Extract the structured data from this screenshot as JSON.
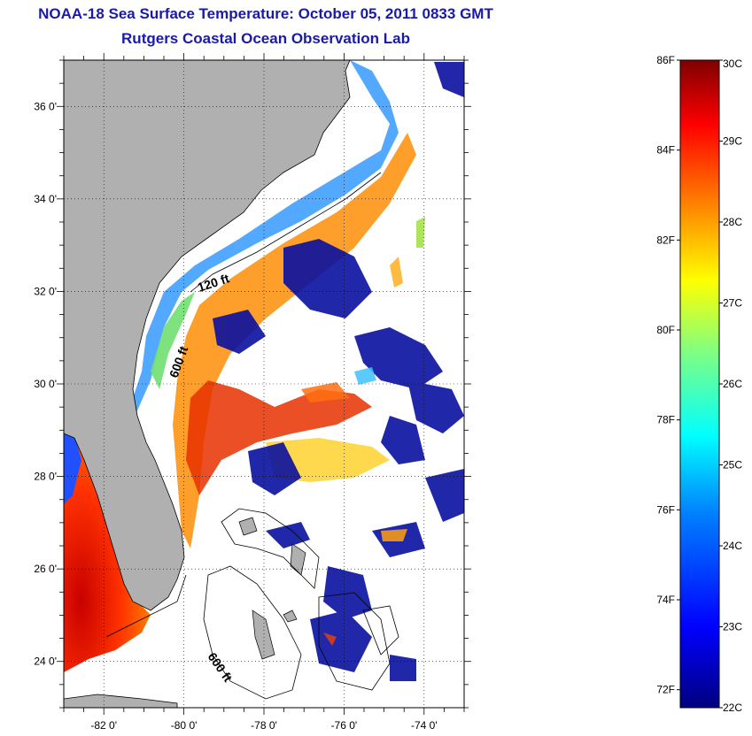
{
  "title": "NOAA-18 Sea Surface Temperature:  October 05, 2011 0833 GMT",
  "subtitle": "Rutgers Coastal Ocean Observation Lab",
  "map": {
    "lon_range": [
      -83,
      -73
    ],
    "lat_range": [
      23,
      37
    ],
    "lon_ticks": [
      {
        "value": -82,
        "label": "-82 0'"
      },
      {
        "value": -80,
        "label": "-80 0'"
      },
      {
        "value": -78,
        "label": "-78 0'"
      },
      {
        "value": -76,
        "label": "-76 0'"
      },
      {
        "value": -74,
        "label": "-74 0'"
      }
    ],
    "lat_ticks": [
      {
        "value": 24,
        "label": "24 0'"
      },
      {
        "value": 26,
        "label": "26 0'"
      },
      {
        "value": 28,
        "label": "28 0'"
      },
      {
        "value": 30,
        "label": "30 0'"
      },
      {
        "value": 32,
        "label": "32 0'"
      },
      {
        "value": 34,
        "label": "34 0'"
      },
      {
        "value": 36,
        "label": "36 0'"
      }
    ],
    "contour_labels": [
      "120 ft",
      "600 ft",
      "600 ft"
    ],
    "colors": {
      "land": "#b0b0b0",
      "ocean_no_data": "#ffffff",
      "title": "#1a1aa8"
    }
  },
  "colorbar": {
    "min_c": 22,
    "max_c": 30,
    "celsius_labels": [
      {
        "value": 30,
        "label": "30C"
      },
      {
        "value": 29,
        "label": "29C"
      },
      {
        "value": 28,
        "label": "28C"
      },
      {
        "value": 27,
        "label": "27C"
      },
      {
        "value": 26,
        "label": "26C"
      },
      {
        "value": 25,
        "label": "25C"
      },
      {
        "value": 24,
        "label": "24C"
      },
      {
        "value": 23,
        "label": "23C"
      },
      {
        "value": 22,
        "label": "22C"
      }
    ],
    "fahrenheit_labels": [
      {
        "value": 86,
        "label": "86F"
      },
      {
        "value": 84,
        "label": "84F"
      },
      {
        "value": 82,
        "label": "82F"
      },
      {
        "value": 80,
        "label": "80F"
      },
      {
        "value": 78,
        "label": "78F"
      },
      {
        "value": 76,
        "label": "76F"
      },
      {
        "value": 74,
        "label": "74F"
      },
      {
        "value": 72,
        "label": "72F"
      }
    ],
    "gradient_colors": [
      "#00007f",
      "#0000ff",
      "#0080ff",
      "#00ffff",
      "#80ff80",
      "#ffff00",
      "#ff8000",
      "#ff0000",
      "#7f0000"
    ]
  }
}
